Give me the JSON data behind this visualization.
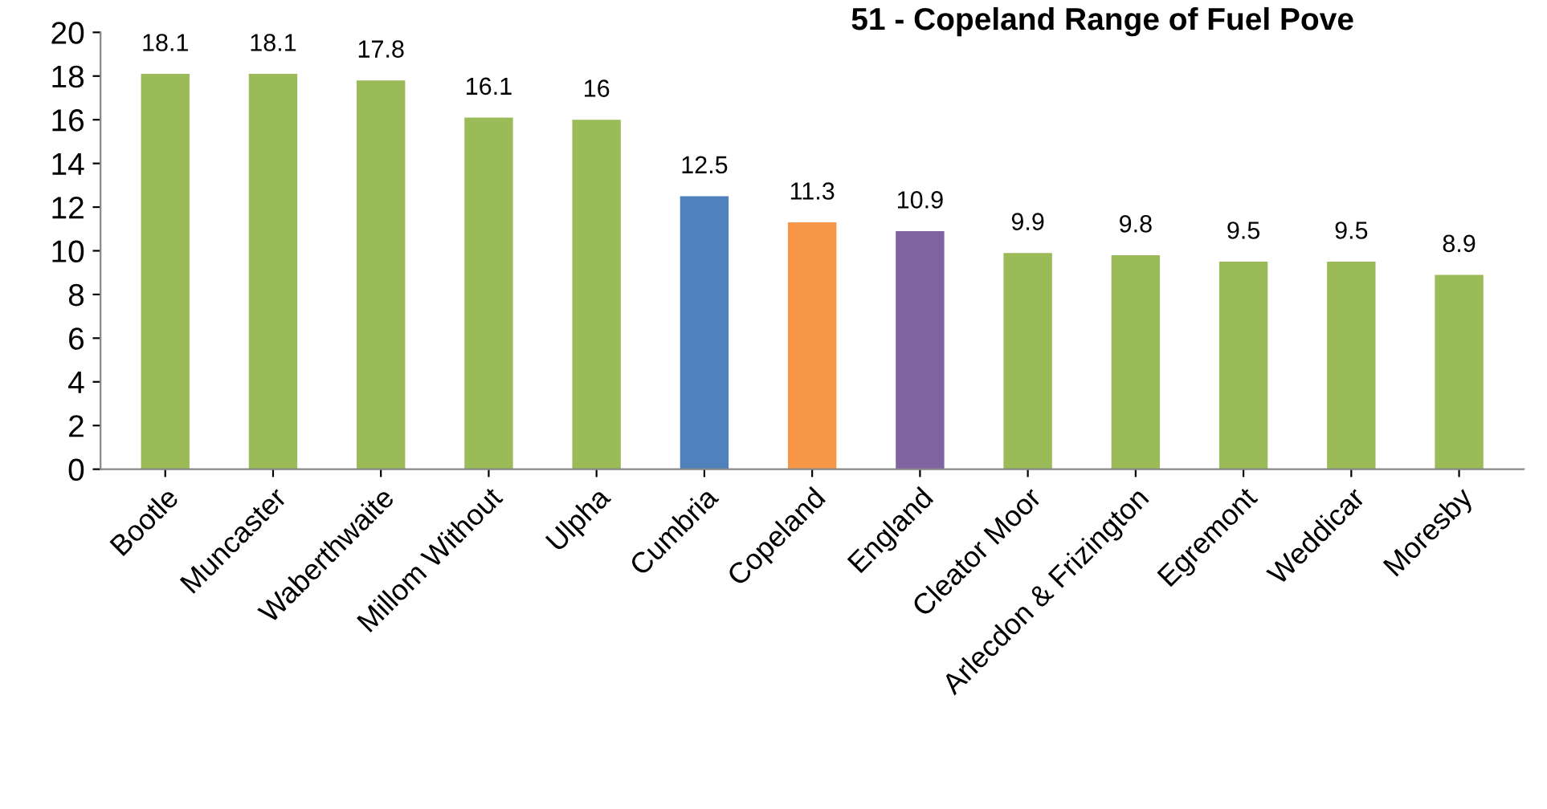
{
  "chart_data": {
    "type": "bar",
    "title": "51 - Copeland Range of Fuel Pove",
    "categories": [
      "Bootle",
      "Muncaster",
      "Waberthwaite",
      "Millom Without",
      "Ulpha",
      "Cumbria",
      "Copeland",
      "England",
      "Cleator Moor",
      "Arlecdon & Frizington",
      "Egremont",
      "Weddicar",
      "Moresby"
    ],
    "values": [
      18.1,
      18.1,
      17.8,
      16.1,
      16,
      12.5,
      11.3,
      10.9,
      9.9,
      9.8,
      9.5,
      9.5,
      8.9
    ],
    "colors": [
      "#9bbb59",
      "#9bbb59",
      "#9bbb59",
      "#9bbb59",
      "#9bbb59",
      "#4f81bd",
      "#f79646",
      "#8064a2",
      "#9bbb59",
      "#9bbb59",
      "#9bbb59",
      "#9bbb59",
      "#9bbb59"
    ],
    "ylim": [
      0,
      20
    ],
    "yticks": [
      0,
      2,
      4,
      6,
      8,
      10,
      12,
      14,
      16,
      18,
      20
    ],
    "data_labels": true,
    "grid": false,
    "legend": false
  }
}
